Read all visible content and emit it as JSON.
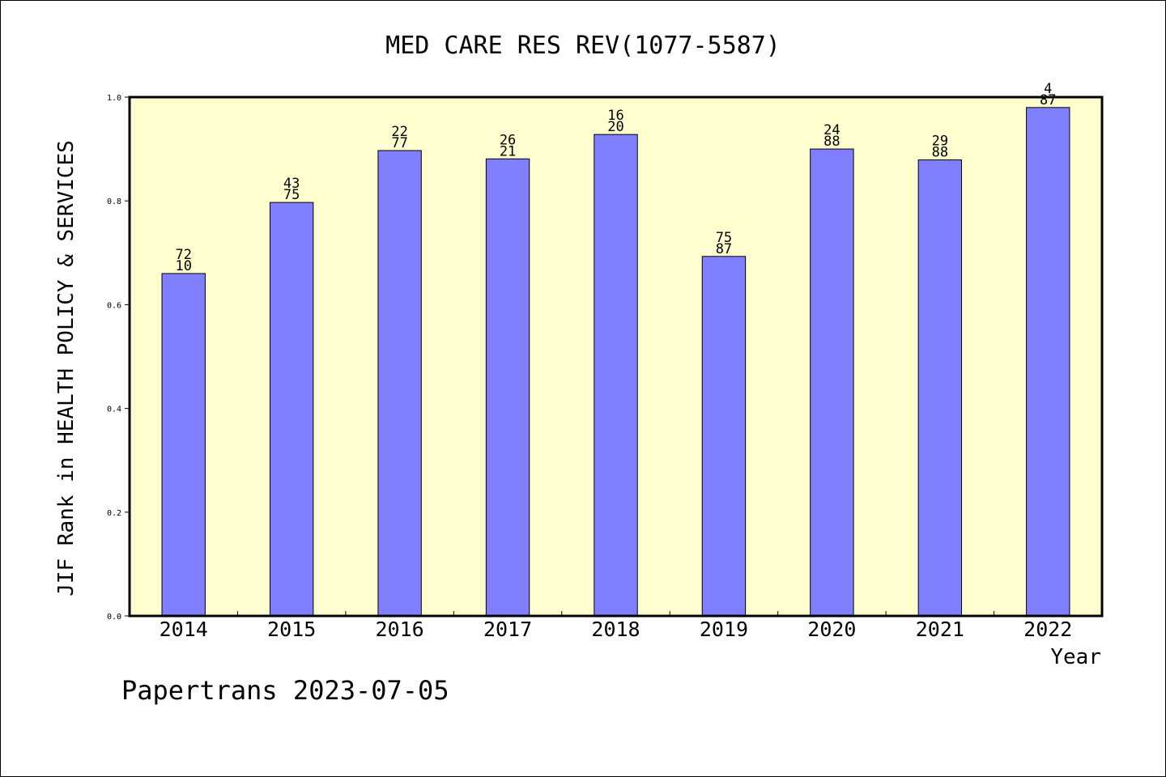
{
  "chart_data": {
    "type": "bar",
    "title": "MED CARE RES REV(1077-5587)",
    "xlabel": "Year",
    "ylabel": "JIF Rank in HEALTH POLICY & SERVICES",
    "ylim": [
      0,
      1
    ],
    "yticks": [
      "0.0",
      "0.2",
      "0.4",
      "0.6",
      "0.8",
      "1.0"
    ],
    "categories": [
      "2014",
      "2015",
      "2016",
      "2017",
      "2018",
      "2019",
      "2020",
      "2021",
      "2022"
    ],
    "values": [
      0.66,
      0.797,
      0.897,
      0.881,
      0.928,
      0.693,
      0.9,
      0.879,
      0.98
    ],
    "labels_top": [
      "72",
      "43",
      "22",
      "26",
      "16",
      "75",
      "24",
      "29",
      "4"
    ],
    "labels_bottom": [
      "10",
      "75",
      "77",
      "21",
      "20",
      "87",
      "88",
      "88",
      "87"
    ],
    "grid": false,
    "colors": {
      "bar": "#8080ff",
      "plot_bg": "#ffffd0",
      "axis": "#000000"
    }
  },
  "footer": "Papertrans 2023-07-05"
}
